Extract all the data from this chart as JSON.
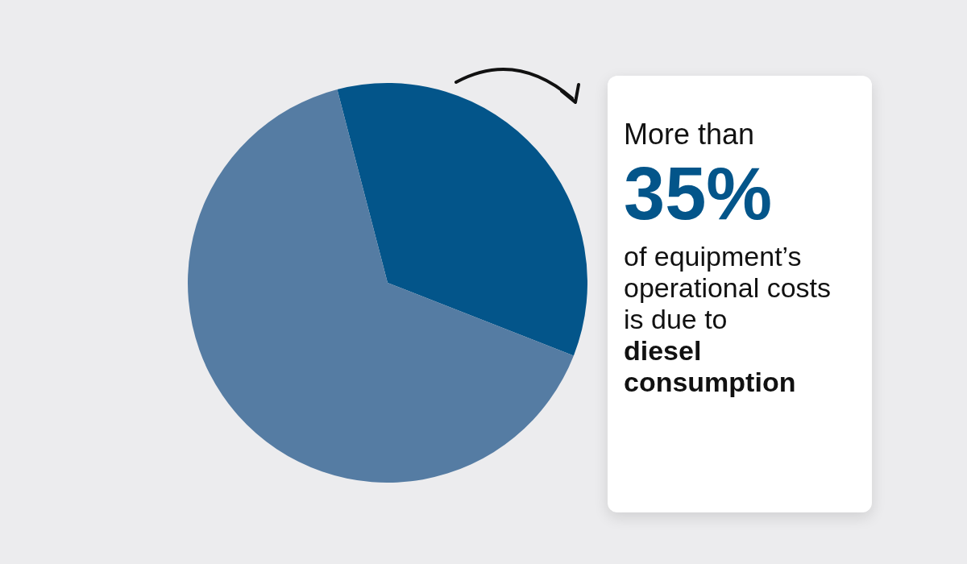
{
  "chart_data": {
    "type": "pie",
    "categories": [
      null,
      null
    ],
    "values": [
      35,
      65
    ],
    "colors": [
      "#03558a",
      "#557ca3"
    ],
    "annotations": [
      "More than",
      "35%",
      "of equipment’s operational costs is due to",
      "diesel consumption"
    ]
  }
}
